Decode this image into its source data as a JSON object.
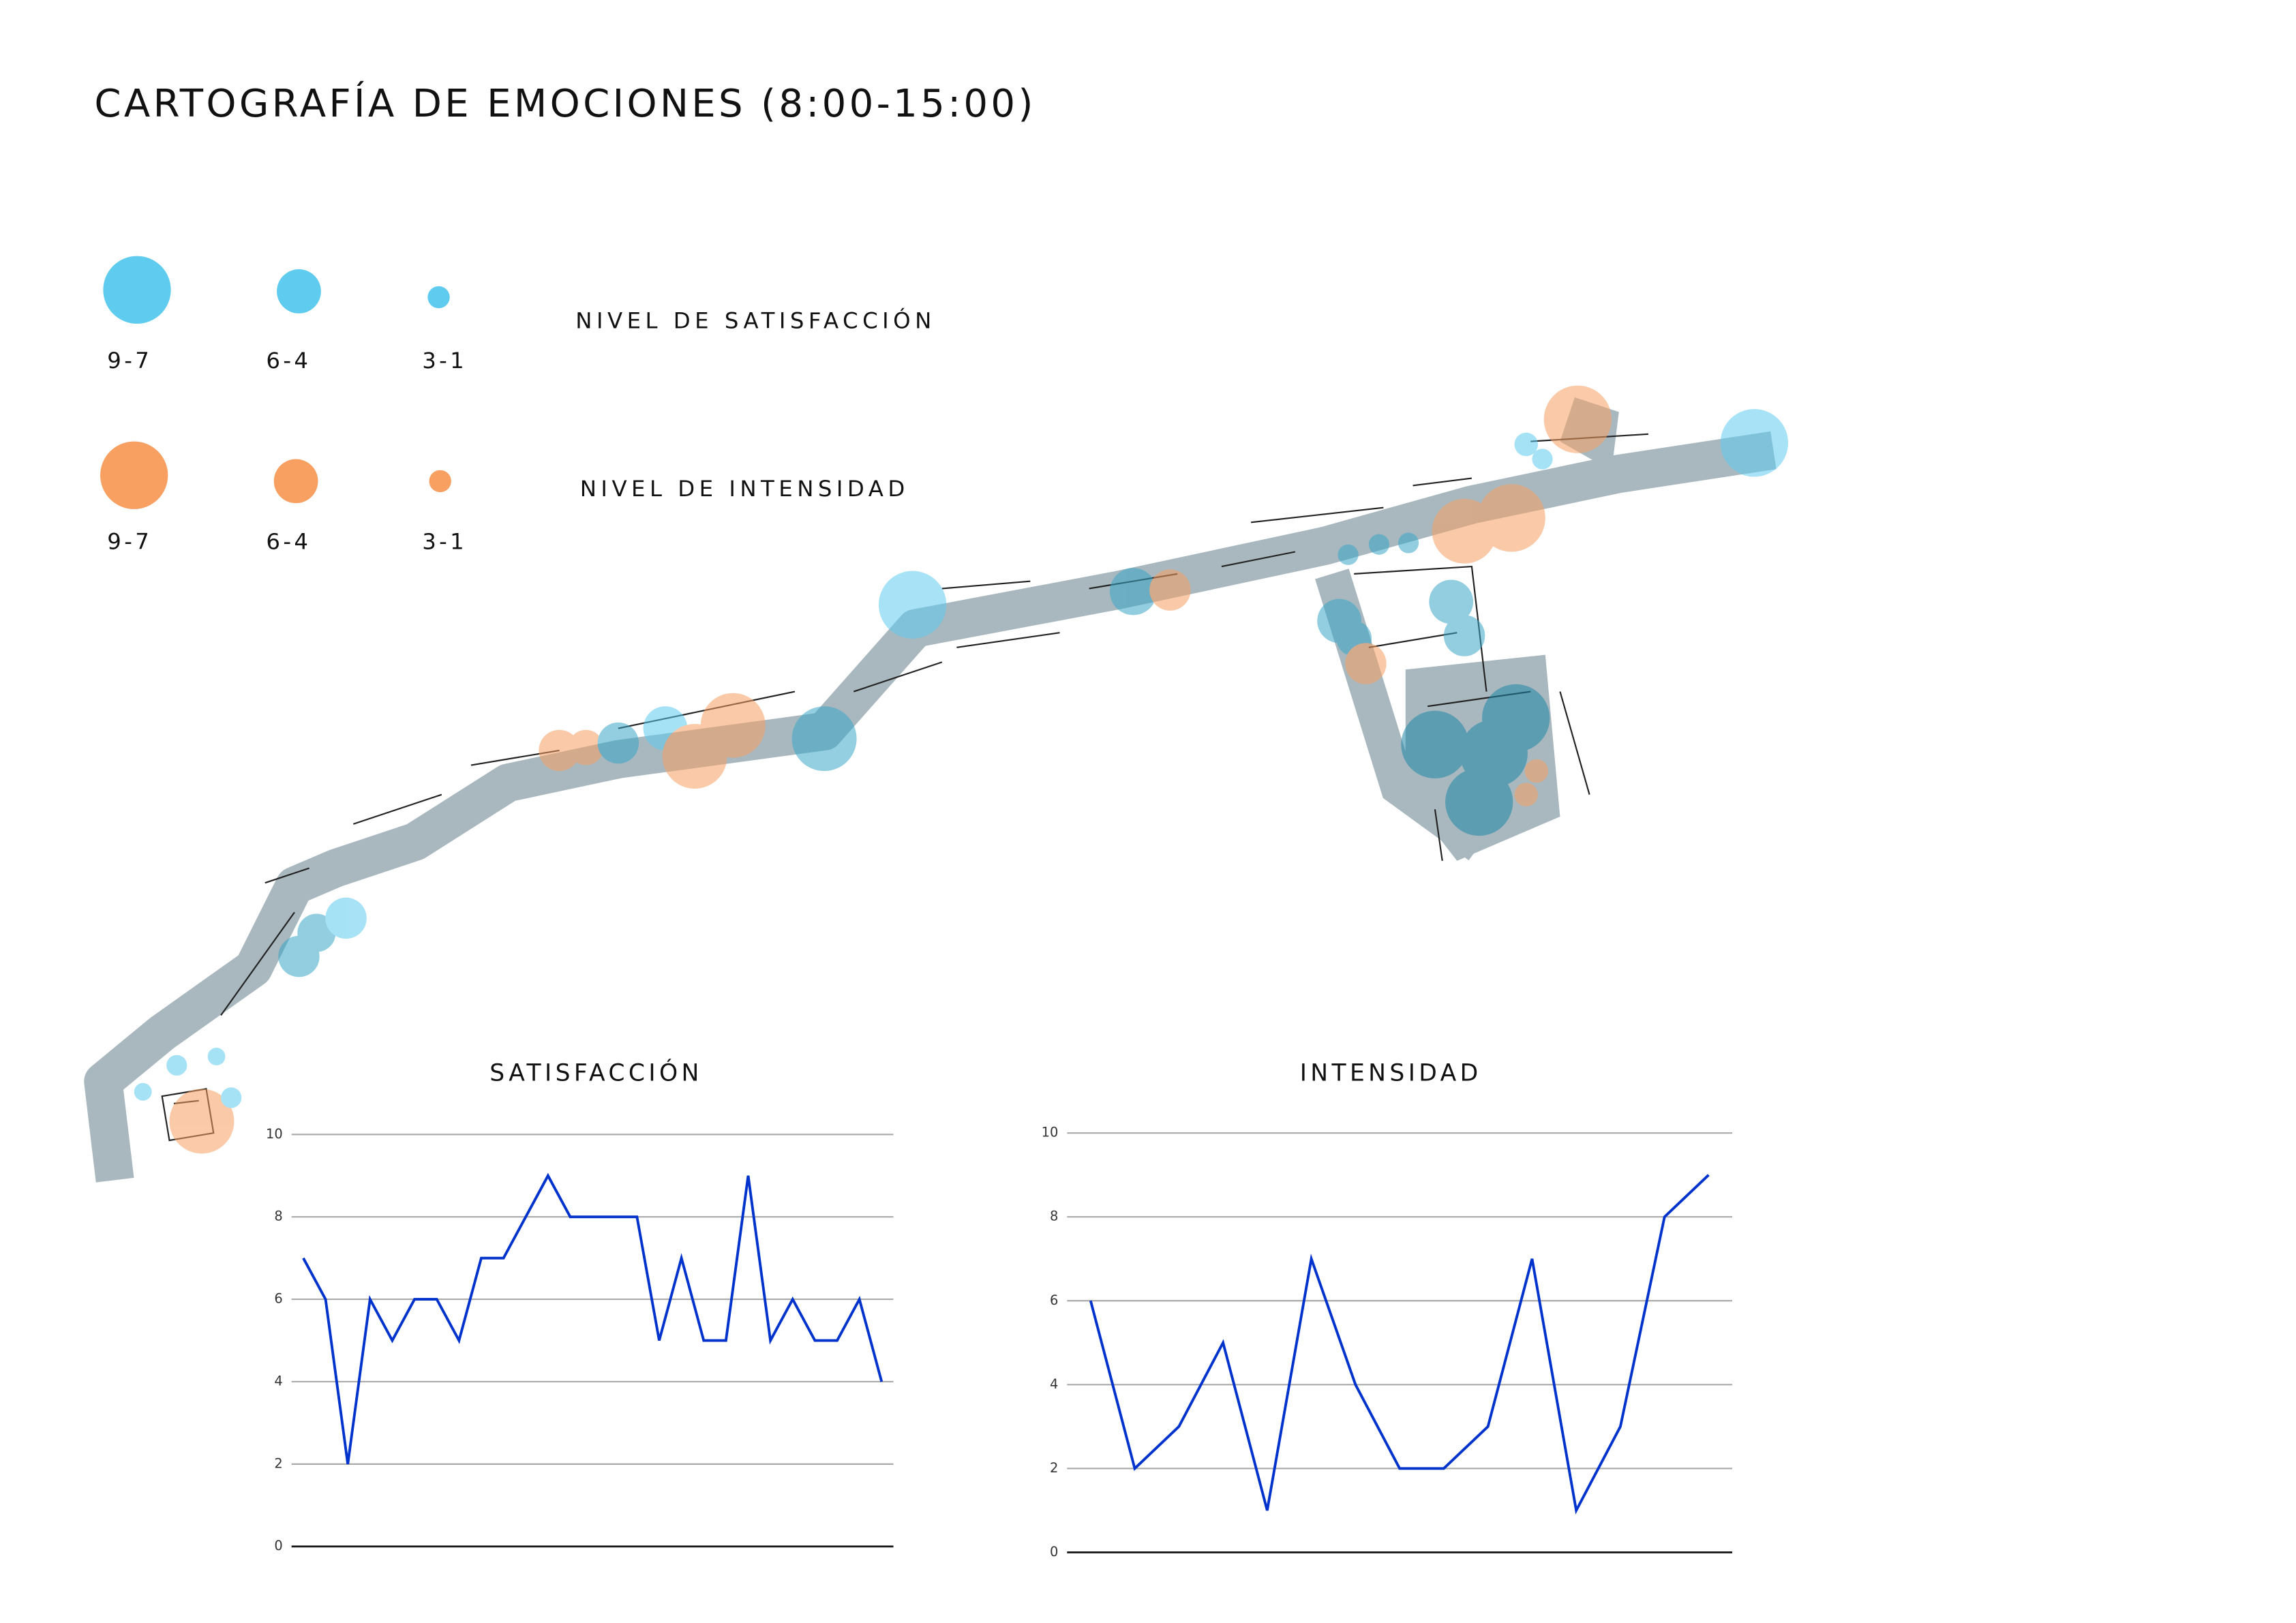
{
  "header": {
    "title": "CARTOGRAFÍA DE EMOCIONES (8:00-15:00)"
  },
  "legend": {
    "satisfaccion": {
      "label": "NIVEL DE SATISFACCIÓN",
      "color": "#5ecbef",
      "items": [
        "9-7",
        "6-4",
        "3-1"
      ]
    },
    "intensidad": {
      "label": "NIVEL DE INTENSIDAD",
      "color": "#f7a062",
      "items": [
        "9-7",
        "6-4",
        "3-1"
      ]
    }
  },
  "chart_data": [
    {
      "type": "line",
      "title": "SATISFACCIÓN",
      "color": "#0033cc",
      "categories": [
        null,
        null,
        null,
        null,
        null,
        null,
        null,
        null,
        null,
        null,
        null,
        null,
        null,
        null,
        null,
        null,
        null,
        null,
        null,
        null,
        null,
        null,
        null,
        null,
        null,
        null,
        null
      ],
      "values": [
        7,
        6,
        2,
        6,
        5,
        6,
        6,
        5,
        7,
        7,
        8,
        9,
        8,
        8,
        8,
        8,
        5,
        7,
        5,
        5,
        9,
        5,
        6,
        5,
        5,
        6,
        4
      ],
      "ylim": [
        0,
        10
      ],
      "yticks": [
        0,
        2,
        4,
        6,
        8,
        10
      ],
      "grid": true
    },
    {
      "type": "line",
      "title": "INTENSIDAD",
      "color": "#0033cc",
      "categories": [
        null,
        null,
        null,
        null,
        null,
        null,
        null,
        null,
        null,
        null,
        null,
        null,
        null,
        null,
        null
      ],
      "values": [
        6,
        2,
        3,
        5,
        1,
        7,
        4,
        2,
        2,
        3,
        7,
        1,
        3,
        8,
        9
      ],
      "ylim": [
        0,
        10
      ],
      "yticks": [
        0,
        2,
        4,
        6,
        8,
        10
      ],
      "grid": true
    }
  ]
}
